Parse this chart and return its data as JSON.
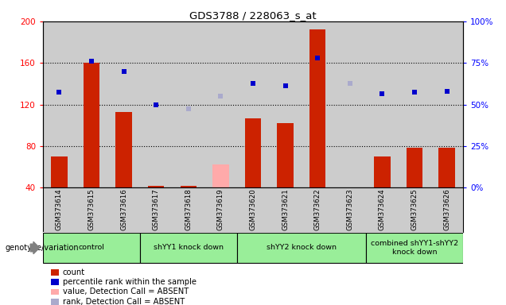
{
  "title": "GDS3788 / 228063_s_at",
  "samples": [
    "GSM373614",
    "GSM373615",
    "GSM373616",
    "GSM373617",
    "GSM373618",
    "GSM373619",
    "GSM373620",
    "GSM373621",
    "GSM373622",
    "GSM373623",
    "GSM373624",
    "GSM373625",
    "GSM373626"
  ],
  "bar_values": [
    70,
    160,
    113,
    42,
    42,
    null,
    107,
    102,
    192,
    null,
    70,
    78,
    78
  ],
  "bar_absent_values": [
    null,
    null,
    null,
    null,
    null,
    62,
    null,
    null,
    null,
    null,
    null,
    null,
    null
  ],
  "blue_dots": [
    132,
    162,
    152,
    120,
    null,
    null,
    140,
    138,
    165,
    null,
    130,
    132,
    133
  ],
  "blue_dots_absent": [
    null,
    null,
    null,
    null,
    116,
    128,
    null,
    null,
    null,
    140,
    null,
    null,
    null
  ],
  "ylim_left": [
    40,
    200
  ],
  "ylim_right": [
    0,
    100
  ],
  "yticks_left": [
    40,
    80,
    120,
    160,
    200
  ],
  "yticks_right": [
    0,
    25,
    50,
    75,
    100
  ],
  "group_ranges": [
    [
      0,
      2
    ],
    [
      3,
      5
    ],
    [
      6,
      9
    ],
    [
      10,
      12
    ]
  ],
  "group_labels": [
    "control",
    "shYY1 knock down",
    "shYY2 knock down",
    "combined shYY1-shYY2\nknock down"
  ],
  "group_color": "#99ee99",
  "bar_color": "#cc2200",
  "bar_absent_color": "#ffaaaa",
  "dot_color": "#0000cc",
  "dot_absent_color": "#aaaacc",
  "bg_color": "#cccccc",
  "genotype_label": "genotype/variation",
  "legend": [
    {
      "label": "count",
      "color": "#cc2200",
      "type": "square"
    },
    {
      "label": "percentile rank within the sample",
      "color": "#0000cc",
      "type": "square"
    },
    {
      "label": "value, Detection Call = ABSENT",
      "color": "#ffaaaa",
      "type": "square"
    },
    {
      "label": "rank, Detection Call = ABSENT",
      "color": "#aaaacc",
      "type": "square"
    }
  ]
}
